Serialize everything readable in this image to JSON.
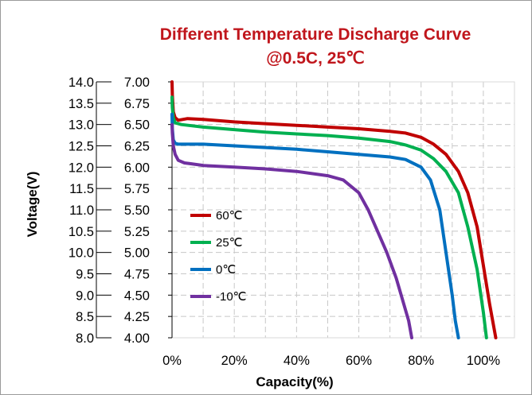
{
  "chart_data": {
    "type": "line",
    "title_line1": "Different Temperature Discharge Curve",
    "title_line2": "@0.5C, 25℃",
    "xlabel": "Capacity(%)",
    "ylabel": "Voltage(V)",
    "x_ticks": [
      "0%",
      "20%",
      "40%",
      "60%",
      "80%",
      "100%"
    ],
    "x_range": [
      0,
      110
    ],
    "y_left_ticks": [
      "14.0",
      "13.5",
      "13.0",
      "12.5",
      "12.0",
      "11.5",
      "11.0",
      "10.5",
      "10.0",
      "9.5",
      "9.0",
      "8.5",
      "8.0"
    ],
    "y_right_ticks": [
      "7.00",
      "6.75",
      "6.50",
      "6.25",
      "6.00",
      "5.75",
      "5.50",
      "5.25",
      "5.00",
      "4.75",
      "4.50",
      "4.25",
      "4.00"
    ],
    "y_range": [
      4.0,
      7.0
    ],
    "grid": true,
    "legend_position": "lower-left",
    "series": [
      {
        "name": "60℃",
        "color": "#c00000",
        "x": [
          0,
          0.1,
          0.4,
          1,
          2,
          5,
          10,
          20,
          30,
          40,
          50,
          60,
          70,
          75,
          80,
          84,
          88,
          92,
          95,
          98,
          100,
          102,
          104
        ],
        "y": [
          7.0,
          6.85,
          6.65,
          6.58,
          6.55,
          6.57,
          6.56,
          6.53,
          6.51,
          6.49,
          6.47,
          6.45,
          6.42,
          6.4,
          6.35,
          6.27,
          6.15,
          5.95,
          5.7,
          5.3,
          4.85,
          4.4,
          4.0
        ]
      },
      {
        "name": "25℃",
        "color": "#00b050",
        "x": [
          0,
          0.1,
          0.4,
          1,
          3,
          10,
          20,
          30,
          40,
          50,
          60,
          70,
          75,
          80,
          84,
          88,
          92,
          95,
          98,
          100,
          101
        ],
        "y": [
          6.82,
          6.7,
          6.58,
          6.52,
          6.5,
          6.47,
          6.44,
          6.41,
          6.39,
          6.37,
          6.34,
          6.3,
          6.26,
          6.2,
          6.1,
          5.95,
          5.7,
          5.3,
          4.8,
          4.3,
          4.0
        ]
      },
      {
        "name": "0℃",
        "color": "#0070c0",
        "x": [
          0,
          0.1,
          0.4,
          1,
          2,
          5,
          10,
          20,
          30,
          40,
          50,
          60,
          70,
          75,
          80,
          83,
          86,
          88,
          90,
          91,
          92
        ],
        "y": [
          6.62,
          6.45,
          6.32,
          6.28,
          6.27,
          6.27,
          6.27,
          6.25,
          6.23,
          6.21,
          6.18,
          6.15,
          6.12,
          6.09,
          6.0,
          5.85,
          5.5,
          5.0,
          4.5,
          4.2,
          4.0
        ]
      },
      {
        "name": "-10℃",
        "color": "#7030a0",
        "x": [
          0,
          0.1,
          0.4,
          1,
          2,
          4,
          6,
          10,
          20,
          30,
          40,
          50,
          55,
          60,
          63,
          66,
          69,
          72,
          74,
          76,
          77
        ],
        "y": [
          6.5,
          6.4,
          6.25,
          6.15,
          6.08,
          6.05,
          6.04,
          6.02,
          6.0,
          5.98,
          5.95,
          5.9,
          5.85,
          5.7,
          5.5,
          5.25,
          5.0,
          4.7,
          4.45,
          4.2,
          4.0
        ]
      }
    ]
  }
}
